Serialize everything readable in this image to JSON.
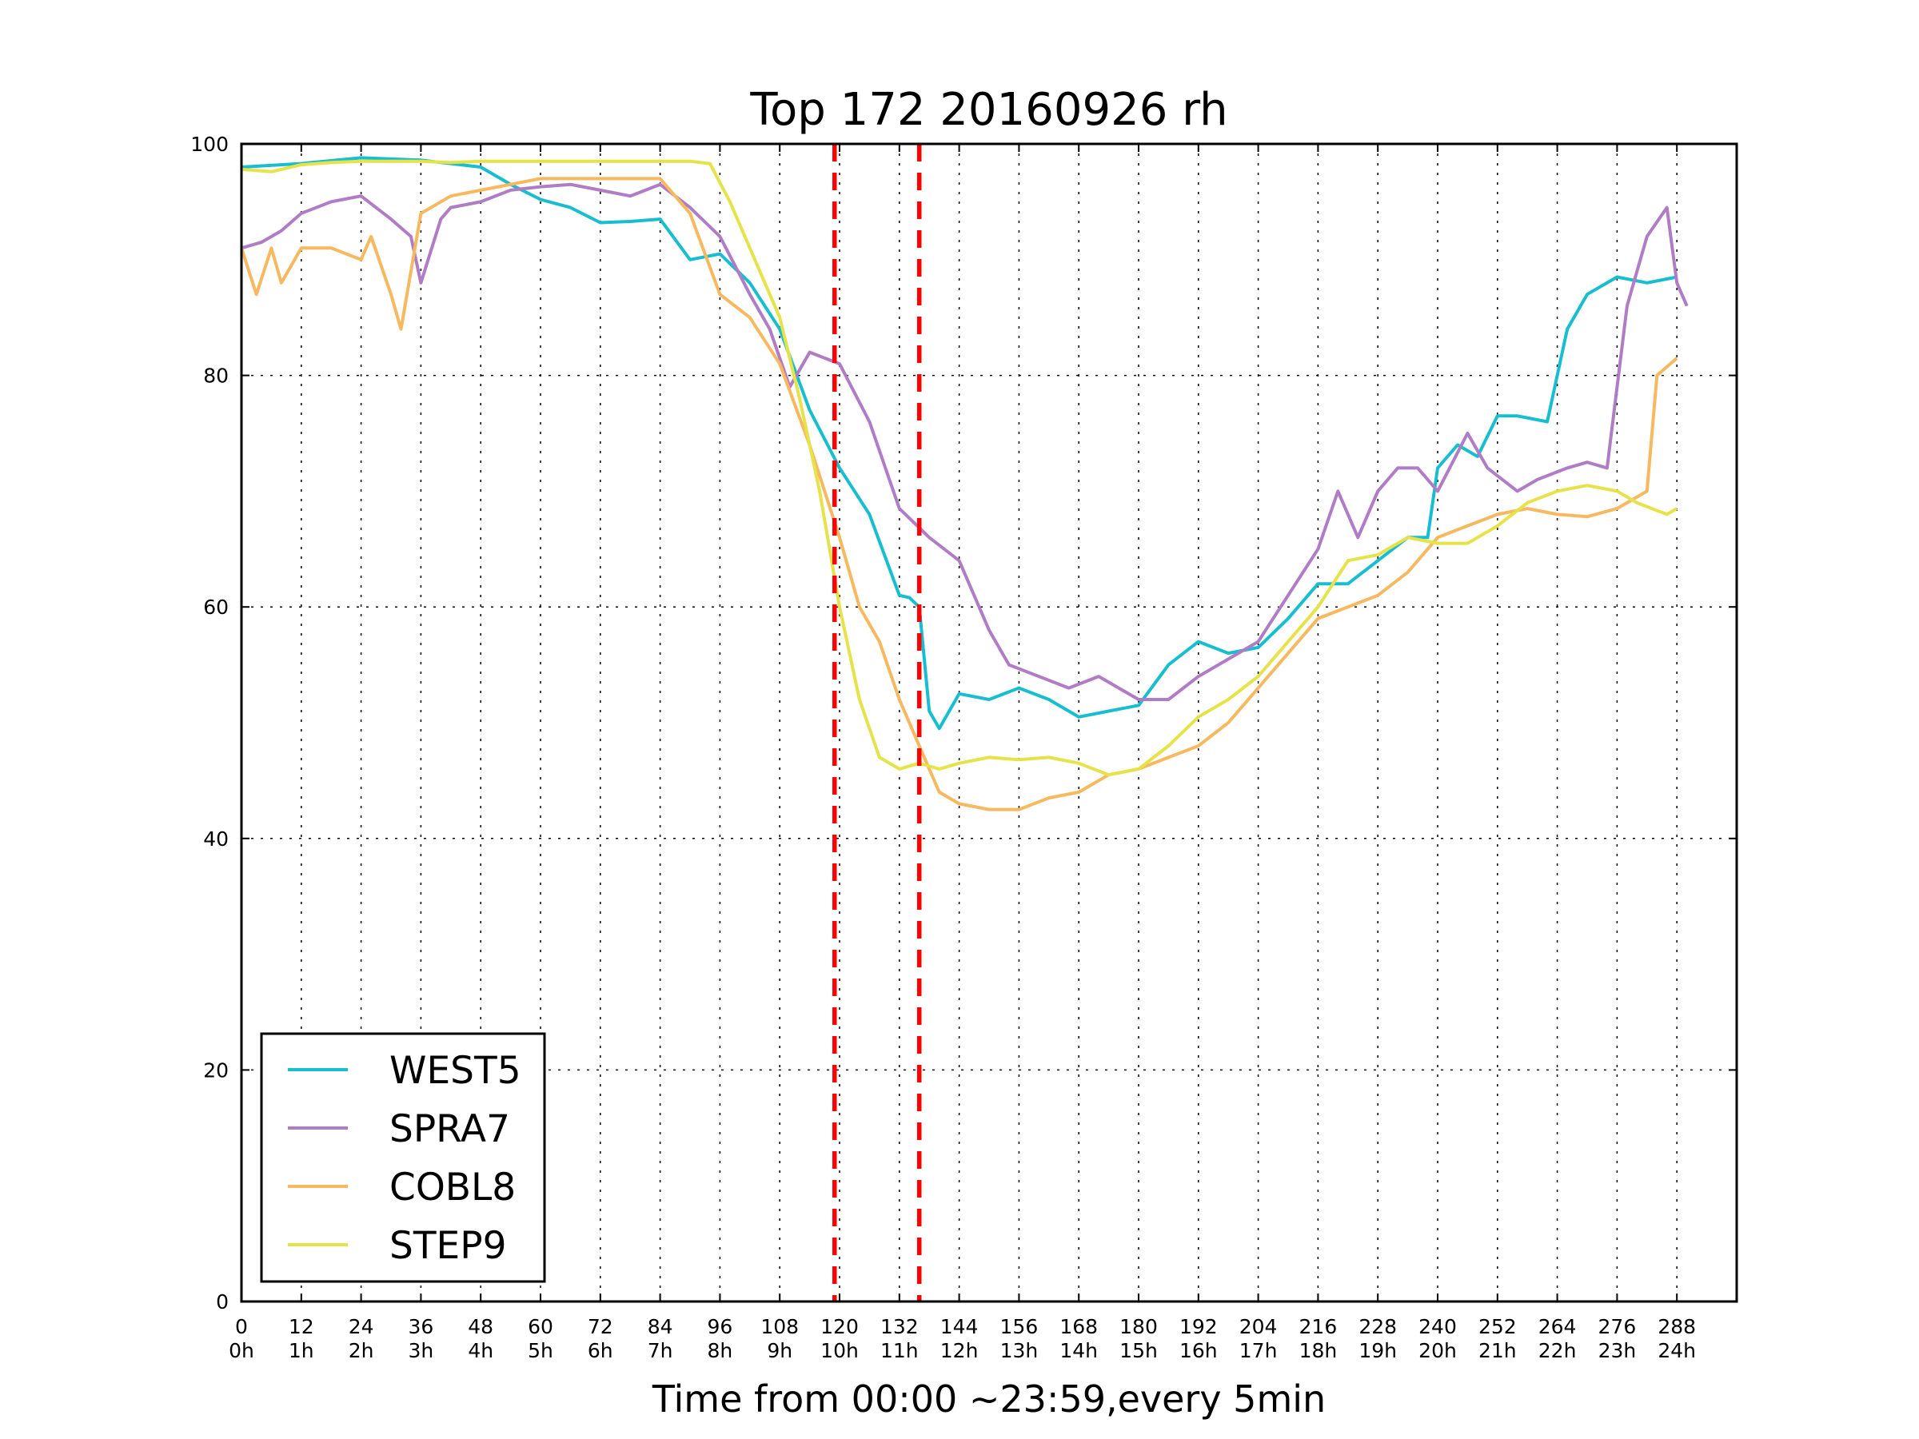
{
  "chart_data": {
    "type": "line",
    "title": "Top 172 20160926 rh",
    "xlabel": "Time from 00:00 ~23:59,every 5min",
    "ylabel": "",
    "xlim": [
      0,
      300
    ],
    "ylim": [
      0,
      100
    ],
    "grid": true,
    "legend_position": "lower-left",
    "x_ticks": [
      0,
      12,
      24,
      36,
      48,
      60,
      72,
      84,
      96,
      108,
      120,
      132,
      144,
      156,
      168,
      180,
      192,
      204,
      216,
      228,
      240,
      252,
      264,
      276,
      288
    ],
    "x_tick_labels": [
      "0",
      "12",
      "24",
      "36",
      "48",
      "60",
      "72",
      "84",
      "96",
      "108",
      "120",
      "132",
      "144",
      "156",
      "168",
      "180",
      "192",
      "204",
      "216",
      "228",
      "240",
      "252",
      "264",
      "276",
      "288"
    ],
    "x_tick_sublabels": [
      "0h",
      "1h",
      "2h",
      "3h",
      "4h",
      "5h",
      "6h",
      "7h",
      "8h",
      "9h",
      "10h",
      "11h",
      "12h",
      "13h",
      "14h",
      "15h",
      "16h",
      "17h",
      "18h",
      "19h",
      "20h",
      "21h",
      "22h",
      "23h",
      "24h"
    ],
    "y_ticks": [
      0,
      20,
      40,
      60,
      80,
      100
    ],
    "y_tick_labels": [
      "0",
      "20",
      "40",
      "60",
      "80",
      "100"
    ],
    "vertical_markers": [
      {
        "x": 119,
        "color": "#ff0000",
        "style": "dashed"
      },
      {
        "x": 136,
        "color": "#ff0000",
        "style": "dashed"
      }
    ],
    "series": [
      {
        "name": "WEST5",
        "color": "#17becf",
        "points": [
          [
            0,
            98
          ],
          [
            12,
            98.3
          ],
          [
            24,
            98.8
          ],
          [
            36,
            98.6
          ],
          [
            48,
            98
          ],
          [
            54,
            96.5
          ],
          [
            60,
            95.2
          ],
          [
            66,
            94.5
          ],
          [
            72,
            93.2
          ],
          [
            78,
            93.3
          ],
          [
            84,
            93.5
          ],
          [
            90,
            90
          ],
          [
            96,
            90.5
          ],
          [
            102,
            88
          ],
          [
            108,
            84
          ],
          [
            114,
            77
          ],
          [
            120,
            72
          ],
          [
            126,
            68
          ],
          [
            132,
            61
          ],
          [
            134,
            60.8
          ],
          [
            136,
            60
          ],
          [
            138,
            51
          ],
          [
            140,
            49.5
          ],
          [
            144,
            52.5
          ],
          [
            150,
            52
          ],
          [
            156,
            53
          ],
          [
            162,
            52
          ],
          [
            168,
            50.5
          ],
          [
            174,
            51
          ],
          [
            180,
            51.5
          ],
          [
            186,
            55
          ],
          [
            192,
            57
          ],
          [
            198,
            56
          ],
          [
            204,
            56.5
          ],
          [
            210,
            59
          ],
          [
            216,
            62
          ],
          [
            222,
            62
          ],
          [
            228,
            64
          ],
          [
            234,
            66
          ],
          [
            238,
            66
          ],
          [
            240,
            72
          ],
          [
            244,
            74
          ],
          [
            248,
            73
          ],
          [
            252,
            76.5
          ],
          [
            256,
            76.5
          ],
          [
            262,
            76
          ],
          [
            266,
            84
          ],
          [
            270,
            87
          ],
          [
            276,
            88.5
          ],
          [
            282,
            88
          ],
          [
            288,
            88.5
          ]
        ]
      },
      {
        "name": "SPRA7",
        "color": "#b07cc6",
        "points": [
          [
            0,
            91
          ],
          [
            4,
            91.5
          ],
          [
            8,
            92.5
          ],
          [
            12,
            94
          ],
          [
            18,
            95
          ],
          [
            24,
            95.5
          ],
          [
            30,
            93.5
          ],
          [
            34,
            92
          ],
          [
            36,
            88
          ],
          [
            40,
            93.5
          ],
          [
            42,
            94.5
          ],
          [
            48,
            95
          ],
          [
            54,
            96
          ],
          [
            60,
            96.3
          ],
          [
            66,
            96.5
          ],
          [
            72,
            96
          ],
          [
            78,
            95.5
          ],
          [
            84,
            96.5
          ],
          [
            90,
            94.5
          ],
          [
            96,
            92
          ],
          [
            102,
            87
          ],
          [
            106,
            84
          ],
          [
            110,
            79
          ],
          [
            114,
            82
          ],
          [
            120,
            81
          ],
          [
            126,
            76
          ],
          [
            132,
            68.5
          ],
          [
            138,
            66
          ],
          [
            144,
            64
          ],
          [
            150,
            58
          ],
          [
            154,
            55
          ],
          [
            160,
            54
          ],
          [
            166,
            53
          ],
          [
            172,
            54
          ],
          [
            176,
            53
          ],
          [
            180,
            52
          ],
          [
            186,
            52
          ],
          [
            192,
            54
          ],
          [
            198,
            55.5
          ],
          [
            204,
            57
          ],
          [
            210,
            61
          ],
          [
            216,
            65
          ],
          [
            220,
            70
          ],
          [
            224,
            66
          ],
          [
            228,
            70
          ],
          [
            232,
            72
          ],
          [
            236,
            72
          ],
          [
            240,
            70
          ],
          [
            246,
            75
          ],
          [
            250,
            72
          ],
          [
            256,
            70
          ],
          [
            260,
            71
          ],
          [
            266,
            72
          ],
          [
            270,
            72.5
          ],
          [
            274,
            72
          ],
          [
            278,
            86
          ],
          [
            282,
            92
          ],
          [
            286,
            94.5
          ],
          [
            288,
            88
          ],
          [
            290,
            86
          ]
        ]
      },
      {
        "name": "COBL8",
        "color": "#f7b960",
        "points": [
          [
            0,
            91
          ],
          [
            3,
            87
          ],
          [
            6,
            91
          ],
          [
            8,
            88
          ],
          [
            12,
            91
          ],
          [
            18,
            91
          ],
          [
            24,
            90
          ],
          [
            26,
            92
          ],
          [
            30,
            87
          ],
          [
            32,
            84
          ],
          [
            36,
            94
          ],
          [
            42,
            95.5
          ],
          [
            48,
            96
          ],
          [
            54,
            96.5
          ],
          [
            60,
            97
          ],
          [
            66,
            97
          ],
          [
            72,
            97
          ],
          [
            78,
            97
          ],
          [
            84,
            97
          ],
          [
            90,
            94
          ],
          [
            96,
            87
          ],
          [
            102,
            85
          ],
          [
            108,
            81
          ],
          [
            114,
            74
          ],
          [
            120,
            66
          ],
          [
            124,
            60
          ],
          [
            128,
            57
          ],
          [
            132,
            52
          ],
          [
            136,
            48
          ],
          [
            140,
            44
          ],
          [
            144,
            43
          ],
          [
            150,
            42.5
          ],
          [
            156,
            42.5
          ],
          [
            162,
            43.5
          ],
          [
            168,
            44
          ],
          [
            174,
            45.5
          ],
          [
            180,
            46
          ],
          [
            186,
            47
          ],
          [
            192,
            48
          ],
          [
            198,
            50
          ],
          [
            204,
            53
          ],
          [
            210,
            56
          ],
          [
            216,
            59
          ],
          [
            222,
            60
          ],
          [
            228,
            61
          ],
          [
            234,
            63
          ],
          [
            240,
            66
          ],
          [
            246,
            67
          ],
          [
            252,
            68
          ],
          [
            258,
            68.5
          ],
          [
            264,
            68
          ],
          [
            270,
            67.8
          ],
          [
            276,
            68.5
          ],
          [
            282,
            70
          ],
          [
            284,
            80
          ],
          [
            288,
            81.5
          ]
        ]
      },
      {
        "name": "STEP9",
        "color": "#e6e34a",
        "points": [
          [
            0,
            97.8
          ],
          [
            6,
            97.6
          ],
          [
            12,
            98.2
          ],
          [
            18,
            98.4
          ],
          [
            24,
            98.5
          ],
          [
            30,
            98.5
          ],
          [
            36,
            98.5
          ],
          [
            42,
            98.4
          ],
          [
            48,
            98.5
          ],
          [
            54,
            98.5
          ],
          [
            60,
            98.5
          ],
          [
            66,
            98.5
          ],
          [
            72,
            98.5
          ],
          [
            78,
            98.5
          ],
          [
            84,
            98.5
          ],
          [
            90,
            98.5
          ],
          [
            94,
            98.3
          ],
          [
            98,
            95
          ],
          [
            102,
            91
          ],
          [
            108,
            85
          ],
          [
            112,
            78
          ],
          [
            116,
            70
          ],
          [
            120,
            60
          ],
          [
            124,
            52
          ],
          [
            128,
            47
          ],
          [
            132,
            46
          ],
          [
            136,
            46.5
          ],
          [
            140,
            46
          ],
          [
            144,
            46.5
          ],
          [
            150,
            47
          ],
          [
            156,
            46.8
          ],
          [
            162,
            47
          ],
          [
            168,
            46.5
          ],
          [
            174,
            45.5
          ],
          [
            180,
            46
          ],
          [
            186,
            48
          ],
          [
            192,
            50.5
          ],
          [
            198,
            52
          ],
          [
            204,
            54
          ],
          [
            210,
            57
          ],
          [
            216,
            60
          ],
          [
            222,
            64
          ],
          [
            228,
            64.5
          ],
          [
            234,
            66
          ],
          [
            240,
            65.5
          ],
          [
            246,
            65.5
          ],
          [
            252,
            67
          ],
          [
            258,
            69
          ],
          [
            264,
            70
          ],
          [
            270,
            70.5
          ],
          [
            276,
            70
          ],
          [
            280,
            69
          ],
          [
            286,
            68
          ],
          [
            288,
            68.5
          ]
        ]
      }
    ]
  }
}
